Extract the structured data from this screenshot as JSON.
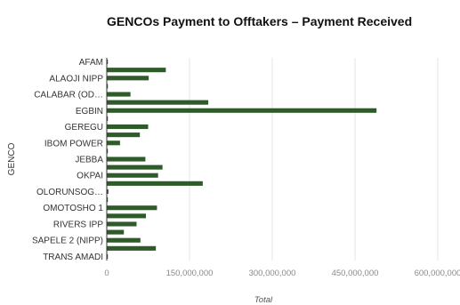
{
  "chart_data": {
    "type": "bar",
    "orientation": "horizontal",
    "title": "GENCOs Payment to Offtakers – Payment Received",
    "xlabel": "Total",
    "ylabel": "GENCO",
    "xlim": [
      0,
      600000000
    ],
    "x_ticks": [
      0,
      150000000,
      300000000,
      450000000,
      600000000
    ],
    "x_tick_labels": [
      "0",
      "150,000,000",
      "300,000,000",
      "450,000,000",
      "600,000,000"
    ],
    "grid": true,
    "legend": "none",
    "bar_color": "#2f5a2a",
    "categories": [
      "AFAM",
      "",
      "ALAOJI NIPP",
      "",
      "CALABAR (OD…",
      "",
      "EGBIN",
      "",
      "GEREGU",
      "",
      "IBOM POWER",
      "",
      "JEBBA",
      "",
      "OKPAI",
      "",
      "OLORUNSOG…",
      "",
      "OMOTOSHO 1",
      "",
      "RIVERS IPP",
      "",
      "SAPELE 2 (NIPP)",
      "",
      "TRANS AMADI"
    ],
    "values": [
      2000000,
      107000000,
      76000000,
      2000000,
      43000000,
      184000000,
      489000000,
      2000000,
      75000000,
      60000000,
      24000000,
      2000000,
      70000000,
      101000000,
      93000000,
      174000000,
      3000000,
      2000000,
      91000000,
      71000000,
      54000000,
      31000000,
      61000000,
      89000000,
      2000000
    ]
  }
}
